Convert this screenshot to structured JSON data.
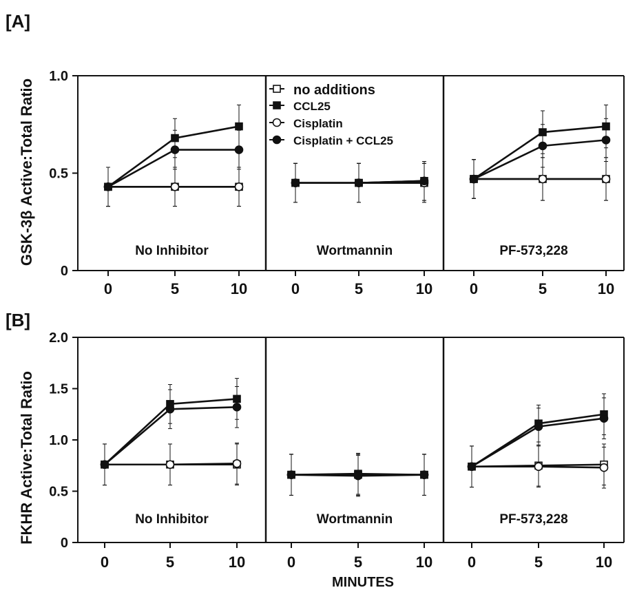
{
  "colors": {
    "ink": "#111111",
    "background": "#ffffff"
  },
  "x_axis_title": "MINUTES",
  "legend": {
    "placement": "top-center (in middle panel of A)",
    "entries": [
      {
        "label": "no additions",
        "marker": "open-square"
      },
      {
        "label": "CCL25",
        "marker": "filled-square"
      },
      {
        "label": "Cisplatin",
        "marker": "open-circle"
      },
      {
        "label": "Cisplatin + CCL25",
        "marker": "filled-circle"
      }
    ]
  },
  "chart_data": [
    {
      "panel_label": "[A]",
      "type": "line",
      "ylabel": "GSK-3β Active:Total Ratio",
      "ylim": [
        0,
        1.0
      ],
      "yticks": [
        "0",
        "0.5",
        "1.0"
      ],
      "xticks": [
        "0",
        "5",
        "10"
      ],
      "subpanels": [
        {
          "title": "No Inhibitor",
          "x": [
            0,
            5,
            10
          ],
          "series": [
            {
              "name": "no additions",
              "values": [
                0.43,
                0.43,
                0.43
              ],
              "error": [
                0.1,
                0.1,
                0.1
              ]
            },
            {
              "name": "CCL25",
              "values": [
                0.43,
                0.68,
                0.74
              ],
              "error": [
                0.1,
                0.1,
                0.11
              ]
            },
            {
              "name": "Cisplatin",
              "values": [
                0.43,
                0.43,
                0.43
              ],
              "error": [
                0.1,
                0.1,
                0.1
              ]
            },
            {
              "name": "Cisplatin + CCL25",
              "values": [
                0.43,
                0.62,
                0.62
              ],
              "error": [
                0.1,
                0.1,
                0.1
              ]
            }
          ]
        },
        {
          "title": "Wortmannin",
          "x": [
            0,
            5,
            10
          ],
          "series": [
            {
              "name": "no additions",
              "values": [
                0.45,
                0.45,
                0.45
              ],
              "error": [
                0.1,
                0.1,
                0.1
              ]
            },
            {
              "name": "CCL25",
              "values": [
                0.45,
                0.45,
                0.46
              ],
              "error": [
                0.1,
                0.1,
                0.1
              ]
            },
            {
              "name": "Cisplatin",
              "values": [
                0.45,
                0.45,
                0.45
              ],
              "error": [
                0.1,
                0.1,
                0.1
              ]
            },
            {
              "name": "Cisplatin + CCL25",
              "values": [
                0.45,
                0.45,
                0.46
              ],
              "error": [
                0.1,
                0.1,
                0.1
              ]
            }
          ]
        },
        {
          "title": "PF-573,228",
          "x": [
            0,
            5,
            10
          ],
          "series": [
            {
              "name": "no additions",
              "values": [
                0.47,
                0.47,
                0.47
              ],
              "error": [
                0.1,
                0.11,
                0.11
              ]
            },
            {
              "name": "CCL25",
              "values": [
                0.47,
                0.71,
                0.74
              ],
              "error": [
                0.1,
                0.11,
                0.11
              ]
            },
            {
              "name": "Cisplatin",
              "values": [
                0.47,
                0.47,
                0.47
              ],
              "error": [
                0.1,
                0.11,
                0.11
              ]
            },
            {
              "name": "Cisplatin + CCL25",
              "values": [
                0.47,
                0.64,
                0.67
              ],
              "error": [
                0.1,
                0.11,
                0.11
              ]
            }
          ]
        }
      ]
    },
    {
      "panel_label": "[B]",
      "type": "line",
      "ylabel": "FKHR Active:Total Ratio",
      "ylim": [
        0,
        2.0
      ],
      "yticks": [
        "0",
        "0.5",
        "1.0",
        "1.5",
        "2.0"
      ],
      "xticks": [
        "0",
        "5",
        "10"
      ],
      "subpanels": [
        {
          "title": "No Inhibitor",
          "x": [
            0,
            5,
            10
          ],
          "series": [
            {
              "name": "no additions",
              "values": [
                0.76,
                0.76,
                0.76
              ],
              "error": [
                0.2,
                0.2,
                0.2
              ]
            },
            {
              "name": "CCL25",
              "values": [
                0.76,
                1.35,
                1.4
              ],
              "error": [
                0.2,
                0.19,
                0.2
              ]
            },
            {
              "name": "Cisplatin",
              "values": [
                0.76,
                0.76,
                0.77
              ],
              "error": [
                0.2,
                0.2,
                0.2
              ]
            },
            {
              "name": "Cisplatin + CCL25",
              "values": [
                0.76,
                1.3,
                1.32
              ],
              "error": [
                0.2,
                0.19,
                0.2
              ]
            }
          ]
        },
        {
          "title": "Wortmannin",
          "x": [
            0,
            5,
            10
          ],
          "series": [
            {
              "name": "no additions",
              "values": [
                0.66,
                0.66,
                0.66
              ],
              "error": [
                0.2,
                0.2,
                0.2
              ]
            },
            {
              "name": "CCL25",
              "values": [
                0.66,
                0.67,
                0.66
              ],
              "error": [
                0.2,
                0.2,
                0.2
              ]
            },
            {
              "name": "Cisplatin",
              "values": [
                0.66,
                0.66,
                0.66
              ],
              "error": [
                0.2,
                0.2,
                0.2
              ]
            },
            {
              "name": "Cisplatin + CCL25",
              "values": [
                0.66,
                0.65,
                0.66
              ],
              "error": [
                0.2,
                0.2,
                0.2
              ]
            }
          ]
        },
        {
          "title": "PF-573,228",
          "x": [
            0,
            5,
            10
          ],
          "series": [
            {
              "name": "no additions",
              "values": [
                0.74,
                0.75,
                0.76
              ],
              "error": [
                0.2,
                0.2,
                0.2
              ]
            },
            {
              "name": "CCL25",
              "values": [
                0.74,
                1.16,
                1.25
              ],
              "error": [
                0.2,
                0.18,
                0.2
              ]
            },
            {
              "name": "Cisplatin",
              "values": [
                0.74,
                0.74,
                0.73
              ],
              "error": [
                0.2,
                0.2,
                0.2
              ]
            },
            {
              "name": "Cisplatin + CCL25",
              "values": [
                0.74,
                1.13,
                1.21
              ],
              "error": [
                0.2,
                0.18,
                0.2
              ]
            }
          ]
        }
      ]
    }
  ]
}
